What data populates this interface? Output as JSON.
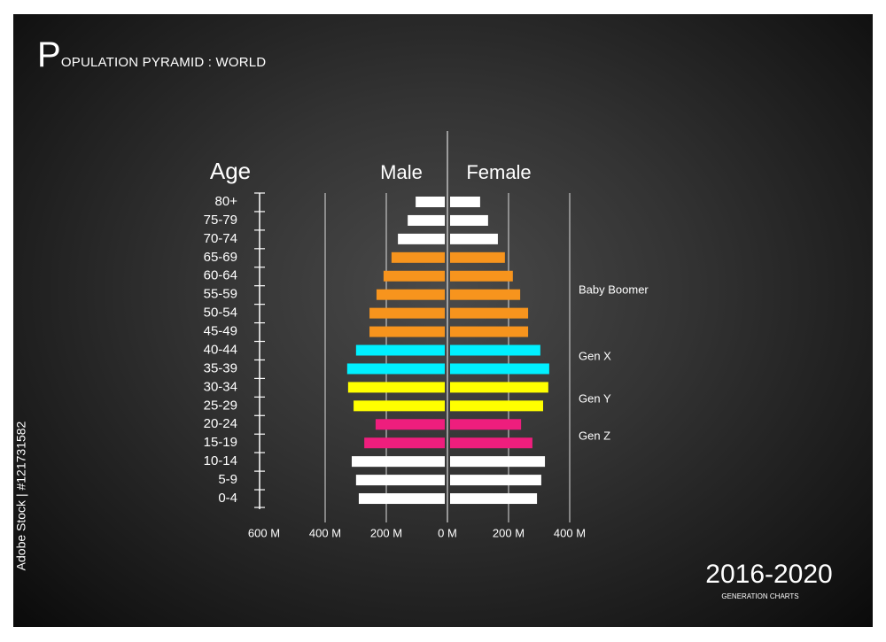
{
  "chart_data": {
    "type": "pyramid",
    "title": "POPULATION PYRAMID : WORLD",
    "category_label": "Age",
    "categories": [
      "80+",
      "75-79",
      "70-74",
      "65-69",
      "60-64",
      "55-59",
      "50-54",
      "45-49",
      "40-44",
      "35-39",
      "30-34",
      "25-29",
      "20-24",
      "15-19",
      "10-14",
      "5-9",
      "0-4"
    ],
    "colors": [
      "#ffffff",
      "#ffffff",
      "#ffffff",
      "#f7941d",
      "#f7941d",
      "#f7941d",
      "#f7941d",
      "#f7941d",
      "#00f0ff",
      "#00f0ff",
      "#ffff00",
      "#ffff00",
      "#ee1e7d",
      "#ee1e7d",
      "#ffffff",
      "#ffffff",
      "#ffffff"
    ],
    "series": [
      {
        "name": "Male",
        "values": [
          104,
          130,
          162,
          183,
          209,
          232,
          255,
          255,
          299,
          328,
          325,
          307,
          235,
          272,
          313,
          299,
          290
        ]
      },
      {
        "name": "Female",
        "values": [
          107,
          133,
          165,
          188,
          214,
          238,
          264,
          264,
          304,
          333,
          330,
          313,
          241,
          278,
          319,
          307,
          293
        ]
      }
    ],
    "xlim_male": [
      0,
      600
    ],
    "xlim_female": [
      0,
      400
    ],
    "xticks_male": [
      {
        "value": 600,
        "label": "600 M"
      },
      {
        "value": 400,
        "label": "400 M"
      },
      {
        "value": 200,
        "label": "200 M"
      },
      {
        "value": 0,
        "label": "0 M"
      }
    ],
    "xticks_female": [
      {
        "value": 200,
        "label": "200 M"
      },
      {
        "value": 400,
        "label": "400 M"
      }
    ],
    "grid": true,
    "annotations": [
      "Baby Boomer",
      "Gen X",
      "Gen Y",
      "Gen Z"
    ],
    "period": "2016-2020",
    "subtitle": "GENERATION CHARTS",
    "credit": "Adobe Stock | #121731582"
  }
}
